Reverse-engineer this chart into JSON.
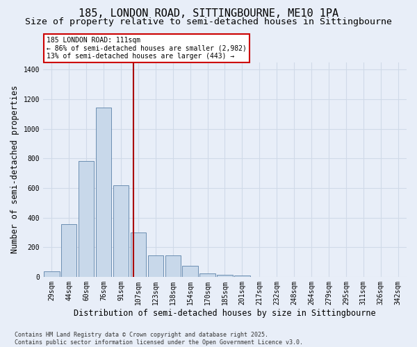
{
  "title_line1": "185, LONDON ROAD, SITTINGBOURNE, ME10 1PA",
  "title_line2": "Size of property relative to semi-detached houses in Sittingbourne",
  "xlabel": "Distribution of semi-detached houses by size in Sittingbourne",
  "ylabel": "Number of semi-detached properties",
  "categories": [
    "29sqm",
    "44sqm",
    "60sqm",
    "76sqm",
    "91sqm",
    "107sqm",
    "123sqm",
    "138sqm",
    "154sqm",
    "170sqm",
    "185sqm",
    "201sqm",
    "217sqm",
    "232sqm",
    "248sqm",
    "264sqm",
    "279sqm",
    "295sqm",
    "311sqm",
    "326sqm",
    "342sqm"
  ],
  "values": [
    35,
    355,
    780,
    1145,
    620,
    300,
    145,
    145,
    75,
    25,
    15,
    10,
    0,
    0,
    0,
    0,
    0,
    0,
    0,
    0,
    0
  ],
  "bar_color": "#c8d8ea",
  "bar_edge_color": "#5a80a8",
  "vline_color": "#aa0000",
  "vline_pos": 4.72,
  "annotation_title": "185 LONDON ROAD: 111sqm",
  "annotation_line2": "← 86% of semi-detached houses are smaller (2,982)",
  "annotation_line3": "13% of semi-detached houses are larger (443) →",
  "annotation_box_edgecolor": "#cc0000",
  "ylim": [
    0,
    1450
  ],
  "yticks": [
    0,
    200,
    400,
    600,
    800,
    1000,
    1200,
    1400
  ],
  "background_color": "#e8eef8",
  "grid_color": "#d0dae8",
  "footer_line1": "Contains HM Land Registry data © Crown copyright and database right 2025.",
  "footer_line2": "Contains public sector information licensed under the Open Government Licence v3.0.",
  "title_fontsize": 11,
  "subtitle_fontsize": 9.5,
  "tick_fontsize": 7,
  "label_fontsize": 8.5,
  "ann_fontsize": 7,
  "footer_fontsize": 6
}
